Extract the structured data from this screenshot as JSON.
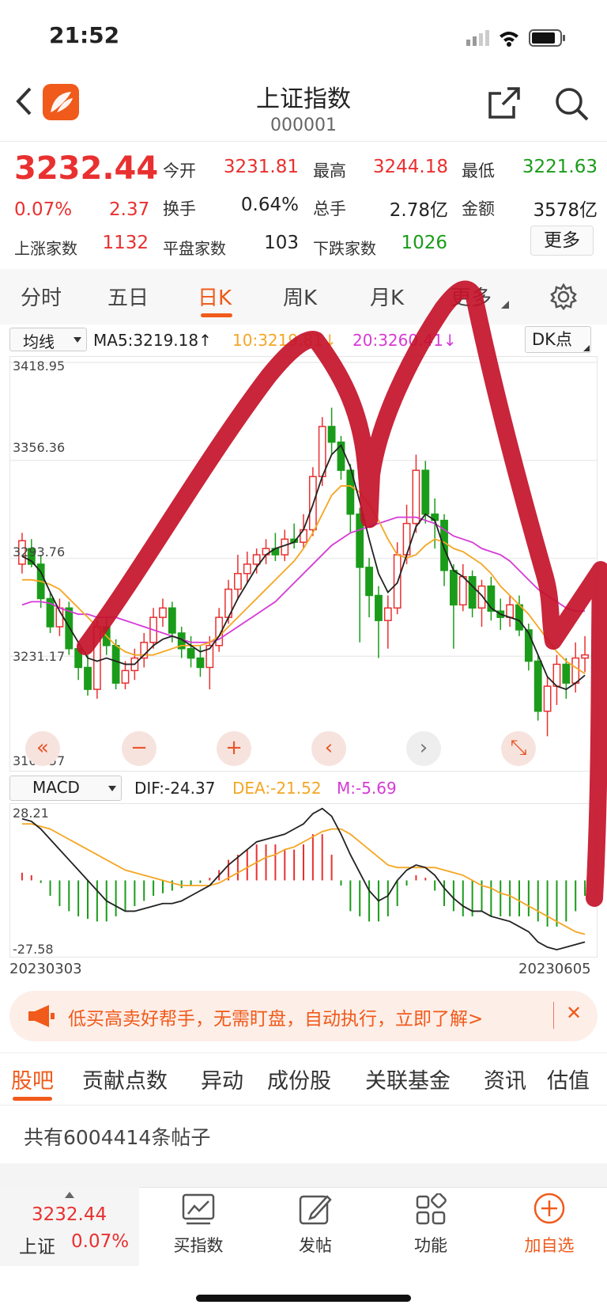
{
  "status_bar": {
    "time": "21:52"
  },
  "header": {
    "title": "上证指数",
    "code": "000001"
  },
  "quote": {
    "price": "3232.44",
    "change_pct": "0.07%",
    "change": "2.37",
    "rows": [
      [
        {
          "label": "今开",
          "value": "3231.81",
          "color": "red"
        },
        {
          "label": "最高",
          "value": "3244.18",
          "color": "red"
        },
        {
          "label": "最低",
          "value": "3221.63",
          "color": "green"
        }
      ],
      [
        {
          "label": "换手",
          "value": "0.64%",
          "color": "dark"
        },
        {
          "label": "总手",
          "value": "2.78亿",
          "color": "dark"
        },
        {
          "label": "金额",
          "value": "3578亿",
          "color": "dark"
        }
      ]
    ],
    "up_label": "上涨家数",
    "up_value": "1132",
    "flat_label": "平盘家数",
    "flat_value": "103",
    "down_label": "下跌家数",
    "down_value": "1026",
    "more_button": "更多"
  },
  "period_tabs": [
    "分时",
    "五日",
    "日K",
    "周K",
    "月K",
    "更多"
  ],
  "active_tab_index": 2,
  "ma_bar": {
    "selector": "均线",
    "ma5": "MA5:3219.18↑",
    "ma10": "10:3219.81↓",
    "ma20": "20:3260.41↓",
    "dk_button": "DK点"
  },
  "kline_axis": [
    "3418.95",
    "3356.36",
    "3293.76",
    "3231.17",
    "3168.57"
  ],
  "chart_controls": [
    "«",
    "−",
    "+",
    "‹",
    "›",
    "⤡"
  ],
  "macd_bar": {
    "selector": "MACD",
    "dif": "DIF:-24.37",
    "dea": "DEA:-21.52",
    "m": "M:-5.69"
  },
  "macd_axis": [
    "28.21",
    "-27.58"
  ],
  "date_start": "20230303",
  "date_end": "20230605",
  "banner": {
    "text": "低买高卖好帮手，无需盯盘，自动执行，立即了解>",
    "close": "✕"
  },
  "sub_tabs": [
    "股吧",
    "贡献点数",
    "异动",
    "成份股",
    "关联基金",
    "资讯",
    "估值"
  ],
  "post_count": "共有6004414条帖子",
  "bottom_bar": {
    "price": "3232.44",
    "name": "上证",
    "pct": "0.07%",
    "items": [
      "买指数",
      "发帖",
      "功能",
      "加自选"
    ]
  },
  "colors": {
    "up": "#e93030",
    "down": "#1a9c1a",
    "accent": "#f05a1a",
    "ma10": "#f5a623",
    "ma20": "#d63ad6",
    "annotation": "#c4122a"
  },
  "chart_data": {
    "type": "candlestick",
    "ylim": [
      3168.57,
      3418.95
    ],
    "candles": [
      [
        3290,
        3305,
        3310,
        3284
      ],
      [
        3300,
        3290,
        3306,
        3288
      ],
      [
        3290,
        3268,
        3296,
        3262
      ],
      [
        3268,
        3250,
        3272,
        3246
      ],
      [
        3250,
        3262,
        3268,
        3244
      ],
      [
        3262,
        3236,
        3266,
        3232
      ],
      [
        3236,
        3224,
        3240,
        3216
      ],
      [
        3224,
        3210,
        3232,
        3206
      ],
      [
        3210,
        3250,
        3254,
        3204
      ],
      [
        3250,
        3238,
        3256,
        3232
      ],
      [
        3238,
        3214,
        3242,
        3210
      ],
      [
        3214,
        3222,
        3228,
        3210
      ],
      [
        3222,
        3230,
        3236,
        3216
      ],
      [
        3230,
        3240,
        3246,
        3224
      ],
      [
        3240,
        3256,
        3262,
        3236
      ],
      [
        3256,
        3262,
        3268,
        3250
      ],
      [
        3262,
        3246,
        3266,
        3240
      ],
      [
        3246,
        3236,
        3250,
        3230
      ],
      [
        3236,
        3230,
        3244,
        3224
      ],
      [
        3230,
        3224,
        3238,
        3218
      ],
      [
        3224,
        3238,
        3244,
        3210
      ],
      [
        3238,
        3256,
        3262,
        3234
      ],
      [
        3256,
        3274,
        3280,
        3252
      ],
      [
        3274,
        3284,
        3296,
        3268
      ],
      [
        3284,
        3290,
        3298,
        3278
      ],
      [
        3290,
        3296,
        3300,
        3284
      ],
      [
        3296,
        3300,
        3306,
        3290
      ],
      [
        3300,
        3296,
        3310,
        3292
      ],
      [
        3296,
        3306,
        3312,
        3292
      ],
      [
        3306,
        3304,
        3316,
        3300
      ],
      [
        3304,
        3312,
        3322,
        3300
      ],
      [
        3312,
        3346,
        3352,
        3308
      ],
      [
        3346,
        3378,
        3384,
        3340
      ],
      [
        3378,
        3368,
        3390,
        3360
      ],
      [
        3368,
        3350,
        3372,
        3344
      ],
      [
        3350,
        3322,
        3354,
        3310
      ],
      [
        3322,
        3288,
        3326,
        3240
      ],
      [
        3288,
        3270,
        3294,
        3256
      ],
      [
        3270,
        3254,
        3276,
        3230
      ],
      [
        3254,
        3262,
        3270,
        3236
      ],
      [
        3262,
        3296,
        3304,
        3258
      ],
      [
        3296,
        3316,
        3328,
        3290
      ],
      [
        3316,
        3350,
        3360,
        3310
      ],
      [
        3350,
        3322,
        3356,
        3316
      ],
      [
        3322,
        3318,
        3332,
        3300
      ],
      [
        3318,
        3286,
        3322,
        3276
      ],
      [
        3286,
        3264,
        3290,
        3236
      ],
      [
        3264,
        3282,
        3290,
        3260
      ],
      [
        3282,
        3262,
        3286,
        3256
      ],
      [
        3262,
        3276,
        3280,
        3250
      ],
      [
        3276,
        3260,
        3282,
        3254
      ],
      [
        3260,
        3256,
        3268,
        3248
      ],
      [
        3256,
        3264,
        3270,
        3250
      ],
      [
        3264,
        3248,
        3270,
        3244
      ],
      [
        3248,
        3228,
        3252,
        3222
      ],
      [
        3228,
        3196,
        3232,
        3190
      ],
      [
        3196,
        3212,
        3218,
        3180
      ],
      [
        3212,
        3226,
        3232,
        3200
      ],
      [
        3226,
        3214,
        3230,
        3204
      ],
      [
        3214,
        3230,
        3240,
        3208
      ],
      [
        3230,
        3232,
        3244,
        3221
      ]
    ],
    "ma5": [
      3295,
      3292,
      3285,
      3272,
      3260,
      3250,
      3240,
      3230,
      3228,
      3230,
      3228,
      3226,
      3226,
      3232,
      3238,
      3242,
      3244,
      3242,
      3238,
      3234,
      3236,
      3244,
      3256,
      3268,
      3278,
      3288,
      3296,
      3300,
      3302,
      3304,
      3312,
      3328,
      3346,
      3360,
      3366,
      3352,
      3330,
      3306,
      3284,
      3272,
      3278,
      3296,
      3314,
      3322,
      3318,
      3300,
      3286,
      3282,
      3276,
      3270,
      3262,
      3258,
      3256,
      3254,
      3246,
      3232,
      3218,
      3212,
      3210,
      3214,
      3219
    ],
    "ma10": [
      3280,
      3280,
      3279,
      3277,
      3274,
      3268,
      3262,
      3256,
      3250,
      3244,
      3238,
      3234,
      3232,
      3232,
      3232,
      3234,
      3236,
      3238,
      3238,
      3238,
      3240,
      3244,
      3250,
      3256,
      3262,
      3268,
      3274,
      3280,
      3286,
      3292,
      3300,
      3310,
      3322,
      3334,
      3340,
      3340,
      3336,
      3328,
      3318,
      3306,
      3296,
      3294,
      3296,
      3302,
      3306,
      3304,
      3300,
      3298,
      3294,
      3290,
      3284,
      3276,
      3270,
      3264,
      3258,
      3250,
      3242,
      3234,
      3228,
      3224,
      3220
    ],
    "ma20": [
      3264,
      3266,
      3266,
      3265,
      3262,
      3260,
      3258,
      3258,
      3256,
      3256,
      3256,
      3254,
      3252,
      3250,
      3248,
      3246,
      3244,
      3242,
      3240,
      3240,
      3240,
      3242,
      3246,
      3250,
      3254,
      3258,
      3262,
      3266,
      3272,
      3278,
      3284,
      3290,
      3296,
      3302,
      3306,
      3310,
      3312,
      3314,
      3316,
      3318,
      3320,
      3320,
      3320,
      3318,
      3316,
      3312,
      3308,
      3306,
      3304,
      3300,
      3298,
      3296,
      3292,
      3286,
      3280,
      3274,
      3270,
      3266,
      3262,
      3260,
      3260
    ],
    "macd_ylim": [
      -27.58,
      28.21
    ],
    "dif": [
      24,
      23,
      20,
      16,
      12,
      8,
      4,
      0,
      -4,
      -8,
      -10,
      -12,
      -12,
      -11,
      -10,
      -9,
      -9,
      -8,
      -6,
      -4,
      -2,
      2,
      6,
      9,
      12,
      15,
      16,
      17,
      18,
      20,
      22,
      26,
      28,
      25,
      18,
      10,
      3,
      -4,
      -8,
      -6,
      0,
      4,
      6,
      5,
      2,
      -3,
      -7,
      -10,
      -12,
      -12,
      -14,
      -15,
      -16,
      -18,
      -20,
      -24,
      -26,
      -27,
      -26,
      -25,
      -24
    ],
    "dea": [
      22,
      22,
      21,
      20,
      18,
      16,
      14,
      12,
      10,
      8,
      6,
      4,
      3,
      2,
      1,
      0,
      -1,
      -2,
      -2,
      -2,
      -2,
      -1,
      1,
      3,
      5,
      7,
      9,
      10,
      12,
      13,
      15,
      17,
      19,
      20,
      20,
      18,
      15,
      12,
      9,
      6,
      5,
      5,
      5,
      5,
      5,
      4,
      3,
      2,
      0,
      -2,
      -3,
      -5,
      -6,
      -8,
      -10,
      -12,
      -14,
      -16,
      -18,
      -20,
      -21
    ],
    "macd_bars": [
      3,
      2,
      -1,
      -6,
      -10,
      -12,
      -14,
      -15,
      -16,
      -16,
      -14,
      -12,
      -10,
      -8,
      -6,
      -5,
      -4,
      -3,
      -2,
      -1,
      1,
      4,
      8,
      10,
      12,
      14,
      14,
      14,
      12,
      12,
      14,
      18,
      18,
      10,
      -2,
      -12,
      -14,
      -16,
      -16,
      -14,
      -10,
      -2,
      2,
      1,
      -4,
      -10,
      -12,
      -14,
      -14,
      -12,
      -14,
      -14,
      -14,
      -14,
      -14,
      -16,
      -18,
      -18,
      -16,
      -12,
      -6
    ]
  }
}
